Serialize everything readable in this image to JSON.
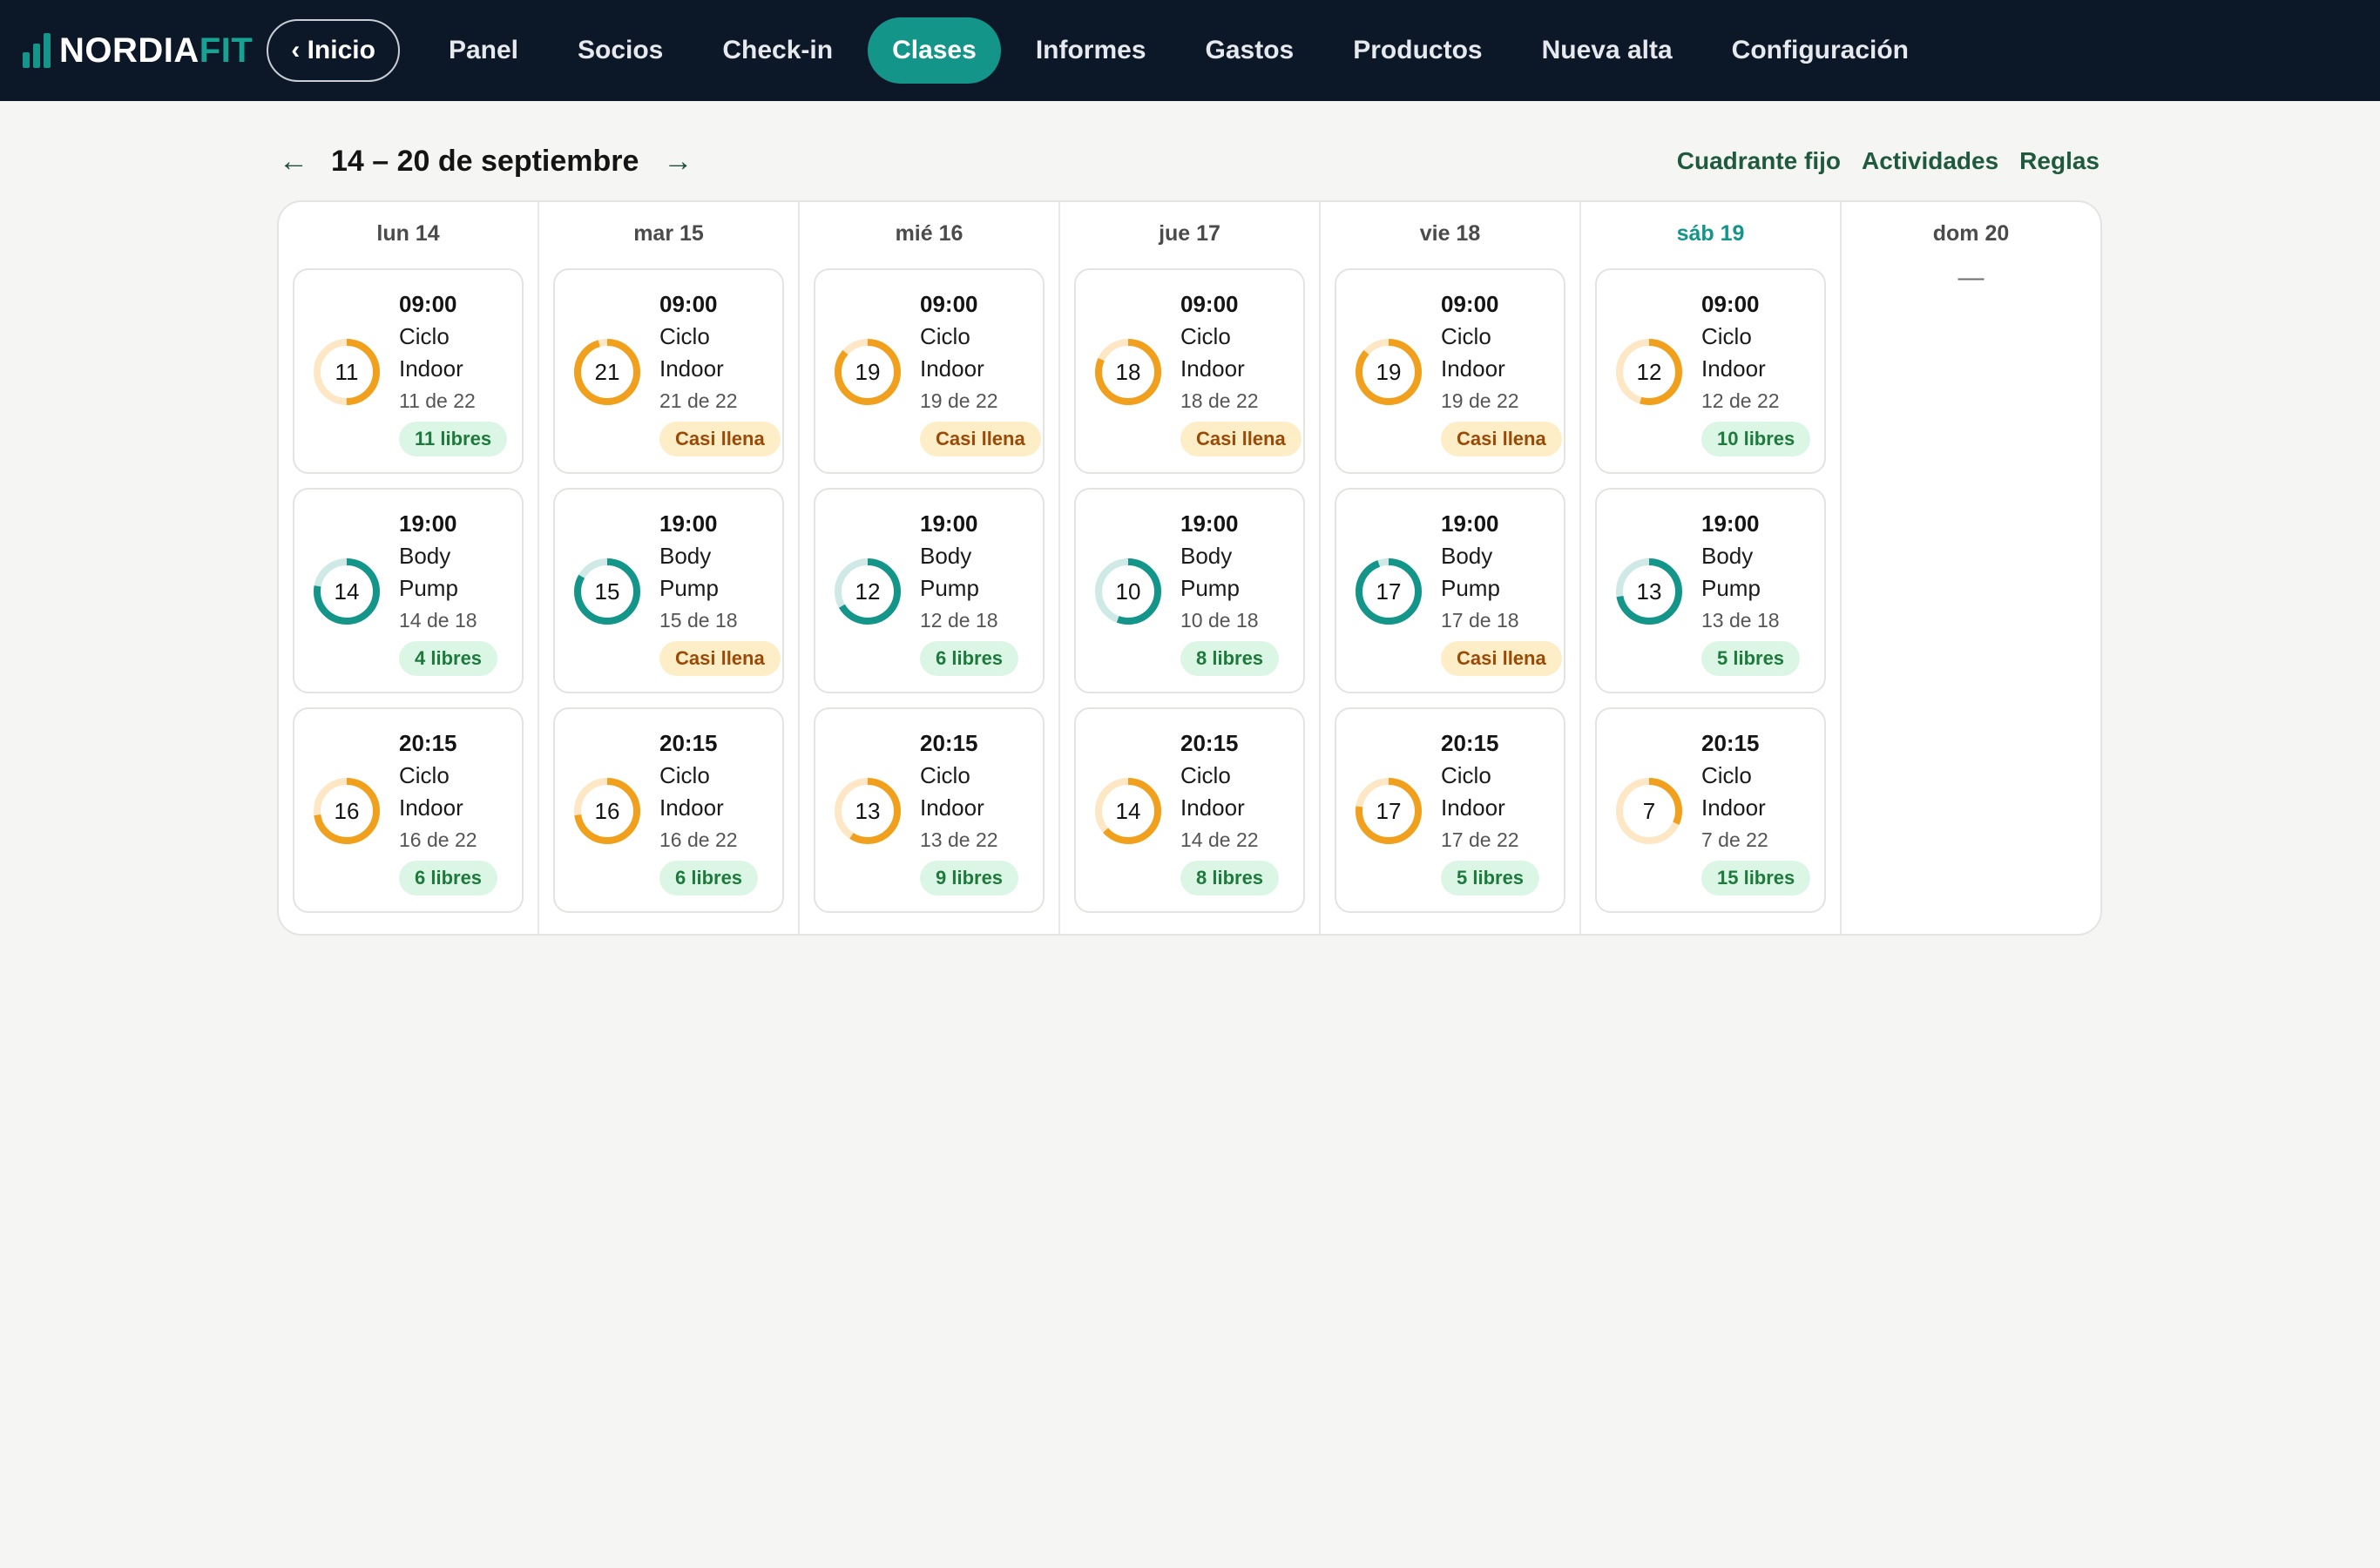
{
  "brand": {
    "part1": "NORDIA",
    "part2": "FIT"
  },
  "nav": {
    "home_label": "‹ Inicio",
    "tabs": [
      {
        "label": "Panel",
        "active": false
      },
      {
        "label": "Socios",
        "active": false
      },
      {
        "label": "Check-in",
        "active": false
      },
      {
        "label": "Clases",
        "active": true
      },
      {
        "label": "Informes",
        "active": false
      },
      {
        "label": "Gastos",
        "active": false
      },
      {
        "label": "Productos",
        "active": false
      },
      {
        "label": "Nueva alta",
        "active": false
      },
      {
        "label": "Configuración",
        "active": false
      }
    ]
  },
  "week": {
    "prev_icon": "←",
    "title": "14 – 20 de septiembre",
    "next_icon": "→",
    "links": [
      "Cuadrante fijo",
      "Actividades",
      "Reglas"
    ]
  },
  "colors": {
    "brand_teal": "#14958a",
    "cycling_ring": "#f0a01c",
    "cycling_track": "#fde7c4",
    "pump_ring": "#14958a",
    "pump_track": "#cfe9e6"
  },
  "days": [
    {
      "label": "lun 14",
      "today": false,
      "classes": [
        {
          "time": "09:00",
          "name": "Ciclo Indoor",
          "booked": 11,
          "capacity": 22,
          "occupancy": "11 de 22",
          "badge": "11 libres",
          "badge_type": "free",
          "kind": "cycling"
        },
        {
          "time": "19:00",
          "name": "Body Pump",
          "booked": 14,
          "capacity": 18,
          "occupancy": "14 de 18",
          "badge": "4 libres",
          "badge_type": "free",
          "kind": "pump"
        },
        {
          "time": "20:15",
          "name": "Ciclo Indoor",
          "booked": 16,
          "capacity": 22,
          "occupancy": "16 de 22",
          "badge": "6 libres",
          "badge_type": "free",
          "kind": "cycling"
        }
      ]
    },
    {
      "label": "mar 15",
      "today": false,
      "classes": [
        {
          "time": "09:00",
          "name": "Ciclo Indoor",
          "booked": 21,
          "capacity": 22,
          "occupancy": "21 de 22",
          "badge": "Casi llena",
          "badge_type": "full",
          "kind": "cycling"
        },
        {
          "time": "19:00",
          "name": "Body Pump",
          "booked": 15,
          "capacity": 18,
          "occupancy": "15 de 18",
          "badge": "Casi llena",
          "badge_type": "full",
          "kind": "pump"
        },
        {
          "time": "20:15",
          "name": "Ciclo Indoor",
          "booked": 16,
          "capacity": 22,
          "occupancy": "16 de 22",
          "badge": "6 libres",
          "badge_type": "free",
          "kind": "cycling"
        }
      ]
    },
    {
      "label": "mié 16",
      "today": false,
      "classes": [
        {
          "time": "09:00",
          "name": "Ciclo Indoor",
          "booked": 19,
          "capacity": 22,
          "occupancy": "19 de 22",
          "badge": "Casi llena",
          "badge_type": "full",
          "kind": "cycling"
        },
        {
          "time": "19:00",
          "name": "Body Pump",
          "booked": 12,
          "capacity": 18,
          "occupancy": "12 de 18",
          "badge": "6 libres",
          "badge_type": "free",
          "kind": "pump"
        },
        {
          "time": "20:15",
          "name": "Ciclo Indoor",
          "booked": 13,
          "capacity": 22,
          "occupancy": "13 de 22",
          "badge": "9 libres",
          "badge_type": "free",
          "kind": "cycling"
        }
      ]
    },
    {
      "label": "jue 17",
      "today": false,
      "classes": [
        {
          "time": "09:00",
          "name": "Ciclo Indoor",
          "booked": 18,
          "capacity": 22,
          "occupancy": "18 de 22",
          "badge": "Casi llena",
          "badge_type": "full",
          "kind": "cycling"
        },
        {
          "time": "19:00",
          "name": "Body Pump",
          "booked": 10,
          "capacity": 18,
          "occupancy": "10 de 18",
          "badge": "8 libres",
          "badge_type": "free",
          "kind": "pump"
        },
        {
          "time": "20:15",
          "name": "Ciclo Indoor",
          "booked": 14,
          "capacity": 22,
          "occupancy": "14 de 22",
          "badge": "8 libres",
          "badge_type": "free",
          "kind": "cycling"
        }
      ]
    },
    {
      "label": "vie 18",
      "today": false,
      "classes": [
        {
          "time": "09:00",
          "name": "Ciclo Indoor",
          "booked": 19,
          "capacity": 22,
          "occupancy": "19 de 22",
          "badge": "Casi llena",
          "badge_type": "full",
          "kind": "cycling"
        },
        {
          "time": "19:00",
          "name": "Body Pump",
          "booked": 17,
          "capacity": 18,
          "occupancy": "17 de 18",
          "badge": "Casi llena",
          "badge_type": "full",
          "kind": "pump"
        },
        {
          "time": "20:15",
          "name": "Ciclo Indoor",
          "booked": 17,
          "capacity": 22,
          "occupancy": "17 de 22",
          "badge": "5 libres",
          "badge_type": "free",
          "kind": "cycling"
        }
      ]
    },
    {
      "label": "sáb 19",
      "today": true,
      "classes": [
        {
          "time": "09:00",
          "name": "Ciclo Indoor",
          "booked": 12,
          "capacity": 22,
          "occupancy": "12 de 22",
          "badge": "10 libres",
          "badge_type": "free",
          "kind": "cycling"
        },
        {
          "time": "19:00",
          "name": "Body Pump",
          "booked": 13,
          "capacity": 18,
          "occupancy": "13 de 18",
          "badge": "5 libres",
          "badge_type": "free",
          "kind": "pump"
        },
        {
          "time": "20:15",
          "name": "Ciclo Indoor",
          "booked": 7,
          "capacity": 22,
          "occupancy": "7 de 22",
          "badge": "15 libres",
          "badge_type": "free",
          "kind": "cycling"
        }
      ]
    },
    {
      "label": "dom 20",
      "today": false,
      "empty_text": "—",
      "classes": []
    }
  ]
}
